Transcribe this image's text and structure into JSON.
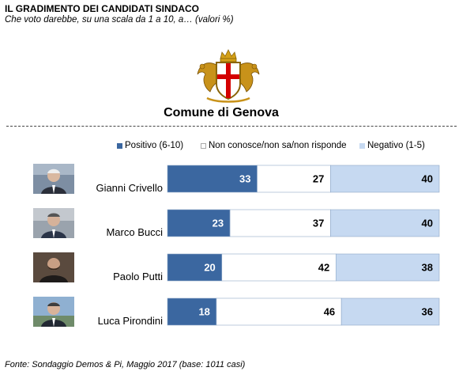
{
  "header": {
    "title": "IL GRADIMENTO DEI CANDIDATI SINDACO",
    "subtitle": "Che voto darebbe, su una scala da 1 a 10, a… (valori %)"
  },
  "logo": {
    "icon": "comune-di-genova-crest-icon",
    "caption": "Comune di Genova"
  },
  "colors": {
    "positive": "#3b67a0",
    "neutral": "#ffffff",
    "negative": "#c6d9f1",
    "bar_border": "#8fa9c8"
  },
  "chart_data": {
    "type": "bar",
    "orientation": "horizontal",
    "stacked": true,
    "categories": [
      "Gianni Crivello",
      "Marco Bucci",
      "Paolo Putti",
      "Luca Pirondini"
    ],
    "series": [
      {
        "name": "Positivo (6-10)",
        "values": [
          33,
          23,
          20,
          18
        ]
      },
      {
        "name": "Non conosce/non sa/non risponde",
        "values": [
          27,
          37,
          42,
          46
        ]
      },
      {
        "name": "Negativo (1-5)",
        "values": [
          40,
          40,
          38,
          36
        ]
      }
    ],
    "xlim": [
      0,
      100
    ],
    "grid": false,
    "legend": "top",
    "data_labels": true
  },
  "photos": [
    {
      "icon": "candidate-photo-icon"
    },
    {
      "icon": "candidate-photo-icon"
    },
    {
      "icon": "candidate-photo-icon"
    },
    {
      "icon": "candidate-photo-icon"
    }
  ],
  "footer": {
    "source": "Fonte: Sondaggio Demos & Pi, Maggio 2017 (base: 1011 casi)"
  }
}
